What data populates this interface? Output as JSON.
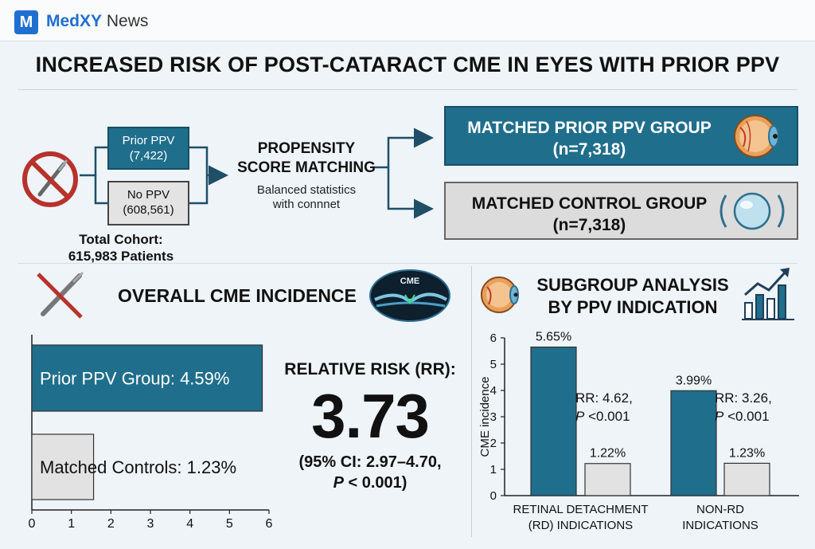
{
  "header": {
    "logo_letter": "M",
    "brand_bold": "MedXY",
    "brand_rest": " News"
  },
  "title": "INCREASED RISK OF POST-CATARACT CME IN EYES WITH PRIOR PPV",
  "flow": {
    "prior_ppv": {
      "label": "Prior PPV",
      "count": "(7,422)"
    },
    "no_ppv": {
      "label": "No PPV",
      "count": "(608,561)"
    },
    "cohort": {
      "line1": "Total Cohort:",
      "line2": "615,983 Patients"
    },
    "psm": {
      "line1": "PROPENSITY",
      "line2": "SCORE MATCHING",
      "sub1": "Balanced statistics",
      "sub2": "with connnet"
    },
    "matched_ppv": {
      "line1": "MATCHED PRIOR PPV GROUP",
      "line2": "(n=7,318)"
    },
    "matched_control": {
      "line1": "MATCHED CONTROL GROUP",
      "line2": "(n=7,318)"
    }
  },
  "icons": {
    "no_surgery": "no-scalpel-icon",
    "eye": "eye-anatomy-icon",
    "lens": "intraocular-lens-icon",
    "scalpel": "crossed-scalpel-icon",
    "oct": "oct-scan-icon",
    "chart": "growth-chart-icon"
  },
  "oct_label": "CME",
  "overall_title": "OVERALL CME INCIDENCE",
  "subgroup_title": {
    "line1": "SUBGROUP ANALYSIS",
    "line2": "BY PPV INDICATION"
  },
  "relative_risk": {
    "label": "RELATIVE RISK (RR):",
    "value": "3.73",
    "ci": "(95% CI: 2.97–4.70,",
    "p_italic": "P",
    "p_rest": " < 0.001)"
  },
  "colors": {
    "teal": "#1f6e8c",
    "gray_bar": "#e2e2e2",
    "dark_outline": "#333333"
  },
  "chart_data": [
    {
      "type": "bar",
      "orientation": "horizontal",
      "categories": [
        "Prior PPV Group",
        "Matched Controls"
      ],
      "values": [
        4.59,
        1.23
      ],
      "bar_labels": [
        "Prior PPV Group: 4.59%",
        "Matched Controls: 1.23%"
      ],
      "xlim": [
        0,
        6
      ],
      "xticks": [
        "0",
        "1",
        "2",
        "3",
        "4",
        "5",
        "6"
      ],
      "title": "OVERALL CME INCIDENCE",
      "xlabel": "",
      "ylabel": ""
    },
    {
      "type": "bar",
      "orientation": "vertical",
      "categories": [
        "RETINAL DETACHMENT (RD) INDICATIONS",
        "NON-RD INDICATIONS"
      ],
      "category_lines": [
        [
          "RETINAL DETACHMENT",
          "(RD) INDICATIONS"
        ],
        [
          "NON-RD",
          "INDICATIONS"
        ]
      ],
      "series": [
        {
          "values": [
            5.65,
            3.99
          ],
          "labels": [
            "5.65%",
            "3.99%"
          ]
        },
        {
          "values": [
            1.22,
            1.23
          ],
          "labels": [
            "1.22%",
            "1.23%"
          ]
        }
      ],
      "annotations": [
        {
          "rr": "RR: 4.62,",
          "p_italic": "P",
          "p_rest": " <0.001"
        },
        {
          "rr": "RR: 3.26,",
          "p_italic": "P",
          "p_rest": " <0.001"
        }
      ],
      "ylim": [
        0,
        6
      ],
      "yticks": [
        "0",
        "1",
        "2",
        "3",
        "4",
        "5",
        "6"
      ],
      "ylabel": "CME incidence",
      "xlabel": "",
      "title": "SUBGROUP ANALYSIS BY PPV INDICATION"
    }
  ]
}
